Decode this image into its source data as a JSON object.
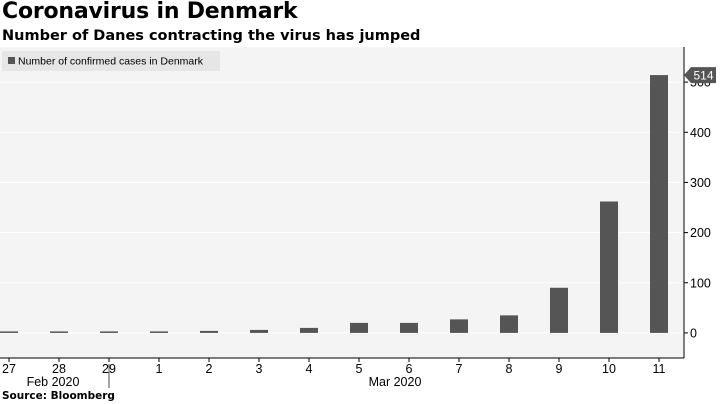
{
  "header": {
    "title": "Coronavirus in Denmark",
    "subtitle": "Number of Danes contracting the virus has jumped"
  },
  "footer": {
    "source": "Source: Bloomberg"
  },
  "colors": {
    "bar": "#555555",
    "plot_background": "#f4f4f4",
    "grid": "#ffffff",
    "axis": "#000000",
    "legend_background": "#e6e6e6",
    "callout_background": "#555555",
    "callout_text": "#ffffff"
  },
  "chart_data": {
    "type": "bar",
    "title": "",
    "xlabel": "",
    "ylabel": "",
    "categories": [
      "27",
      "28",
      "29",
      "1",
      "2",
      "3",
      "4",
      "5",
      "6",
      "7",
      "8",
      "9",
      "10",
      "11"
    ],
    "month_labels": [
      "Feb 2020",
      "Mar 2020"
    ],
    "series": [
      {
        "name": "Number of confirmed cases in Denmark",
        "values": [
          1,
          2,
          3,
          3,
          4,
          6,
          10,
          20,
          20,
          27,
          35,
          90,
          262,
          514
        ]
      }
    ],
    "ylim": [
      -50,
      570
    ],
    "yticks": [
      0,
      100,
      200,
      300,
      400,
      500
    ],
    "y_axis_side": "right",
    "grid": true,
    "legend_position": "top-left",
    "callout": {
      "label": "514",
      "value": 514
    }
  }
}
